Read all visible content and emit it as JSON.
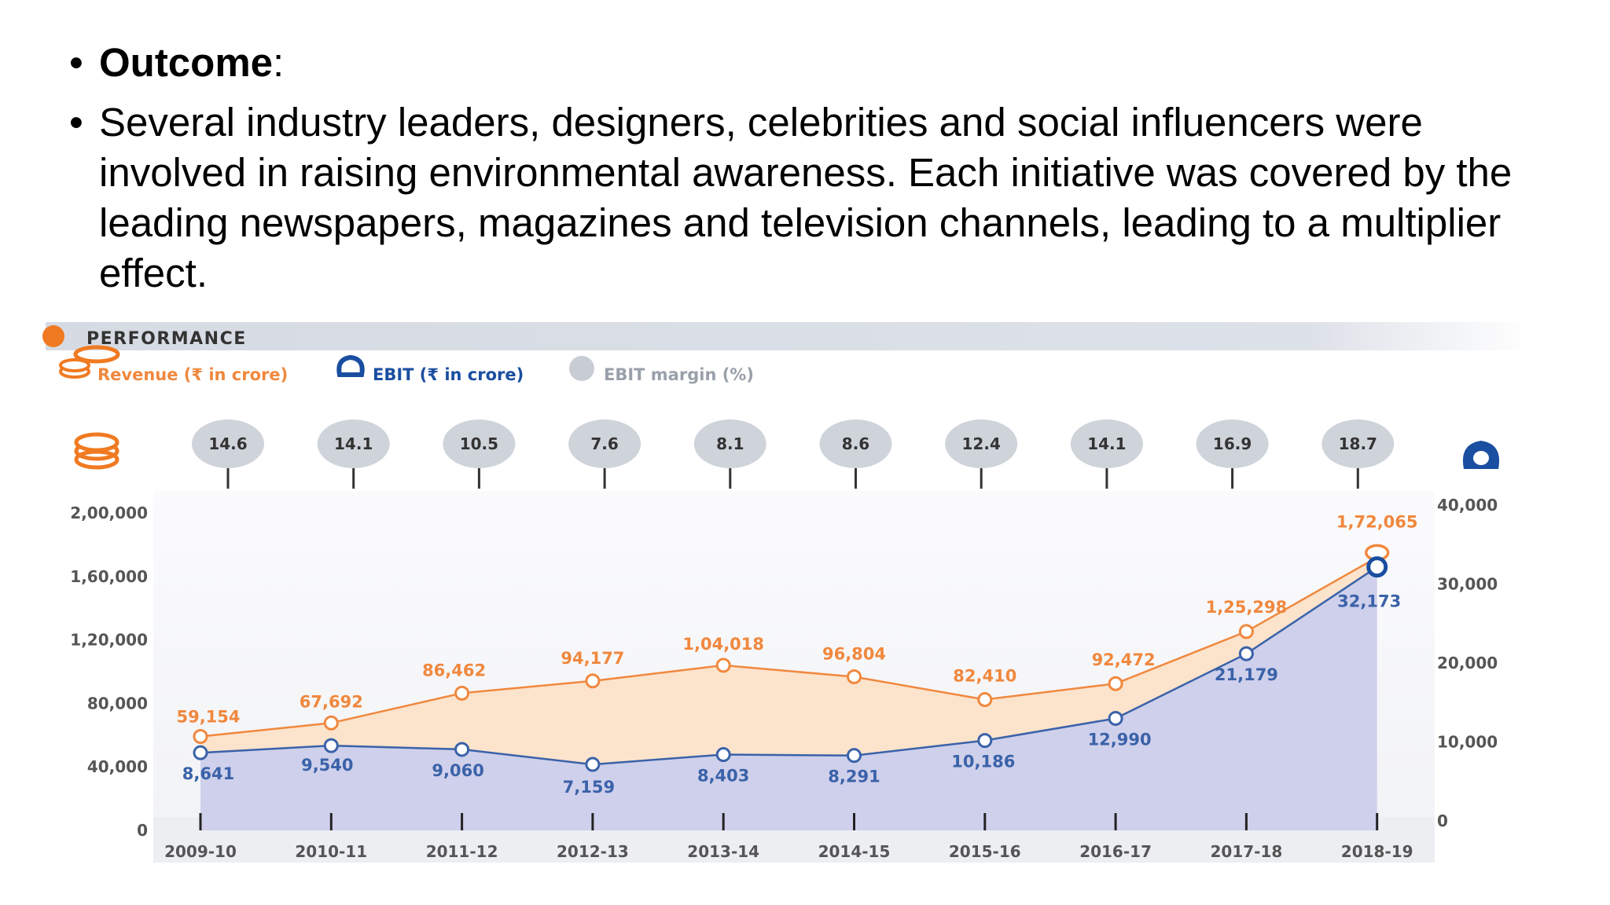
{
  "slide": {
    "outcome_heading": "Outcome",
    "outcome_colon": ":",
    "body_text": "Several industry leaders, designers, celebrities and social influencers were involved in raising environmental awareness. Each initiative was covered by the leading newspapers, magazines and television channels, leading to a multiplier effect."
  },
  "chart_data": {
    "type": "area",
    "title": "PERFORMANCE",
    "categories": [
      "2009-10",
      "2010-11",
      "2011-12",
      "2012-13",
      "2013-14",
      "2014-15",
      "2015-16",
      "2016-17",
      "2017-18",
      "2018-19"
    ],
    "series": [
      {
        "name": "Revenue (₹ in crore)",
        "axis": "left",
        "color": "#f0883e",
        "values": [
          59154,
          67692,
          86462,
          94177,
          104018,
          96804,
          82410,
          92472,
          125298,
          172065
        ],
        "labels": [
          "59,154",
          "67,692",
          "86,462",
          "94,177",
          "1,04,018",
          "96,804",
          "82,410",
          "92,472",
          "1,25,298",
          "1,72,065"
        ]
      },
      {
        "name": "EBIT (₹ in crore)",
        "axis": "right",
        "color": "#3a62a8",
        "values": [
          8641,
          9540,
          9060,
          7159,
          8403,
          8291,
          10186,
          12990,
          21179,
          32173
        ],
        "labels": [
          "8,641",
          "9,540",
          "9,060",
          "7,159",
          "8,403",
          "8,291",
          "10,186",
          "12,990",
          "21,179",
          "32,173"
        ]
      },
      {
        "name": "EBIT margin (%)",
        "axis": "bubble",
        "color": "#cfd3da",
        "values": [
          14.6,
          14.1,
          10.5,
          7.6,
          8.1,
          8.6,
          12.4,
          14.1,
          16.9,
          18.7
        ],
        "labels": [
          "14.6",
          "14.1",
          "10.5",
          "7.6",
          "8.1",
          "8.6",
          "12.4",
          "14.1",
          "16.9",
          "18.7"
        ]
      }
    ],
    "y_left": {
      "range": [
        0,
        200000
      ],
      "ticks": [
        0,
        40000,
        80000,
        120000,
        160000,
        200000
      ],
      "tick_labels": [
        "0",
        "40,000",
        "80,000",
        "1,20,000",
        "1,60,000",
        "2,00,000"
      ]
    },
    "y_right": {
      "range": [
        0,
        40000
      ],
      "ticks": [
        0,
        10000,
        20000,
        30000,
        40000
      ],
      "tick_labels": [
        "0",
        "10,000",
        "20,000",
        "30,000",
        "40,000"
      ]
    },
    "grid": false,
    "legend": "top-left"
  }
}
